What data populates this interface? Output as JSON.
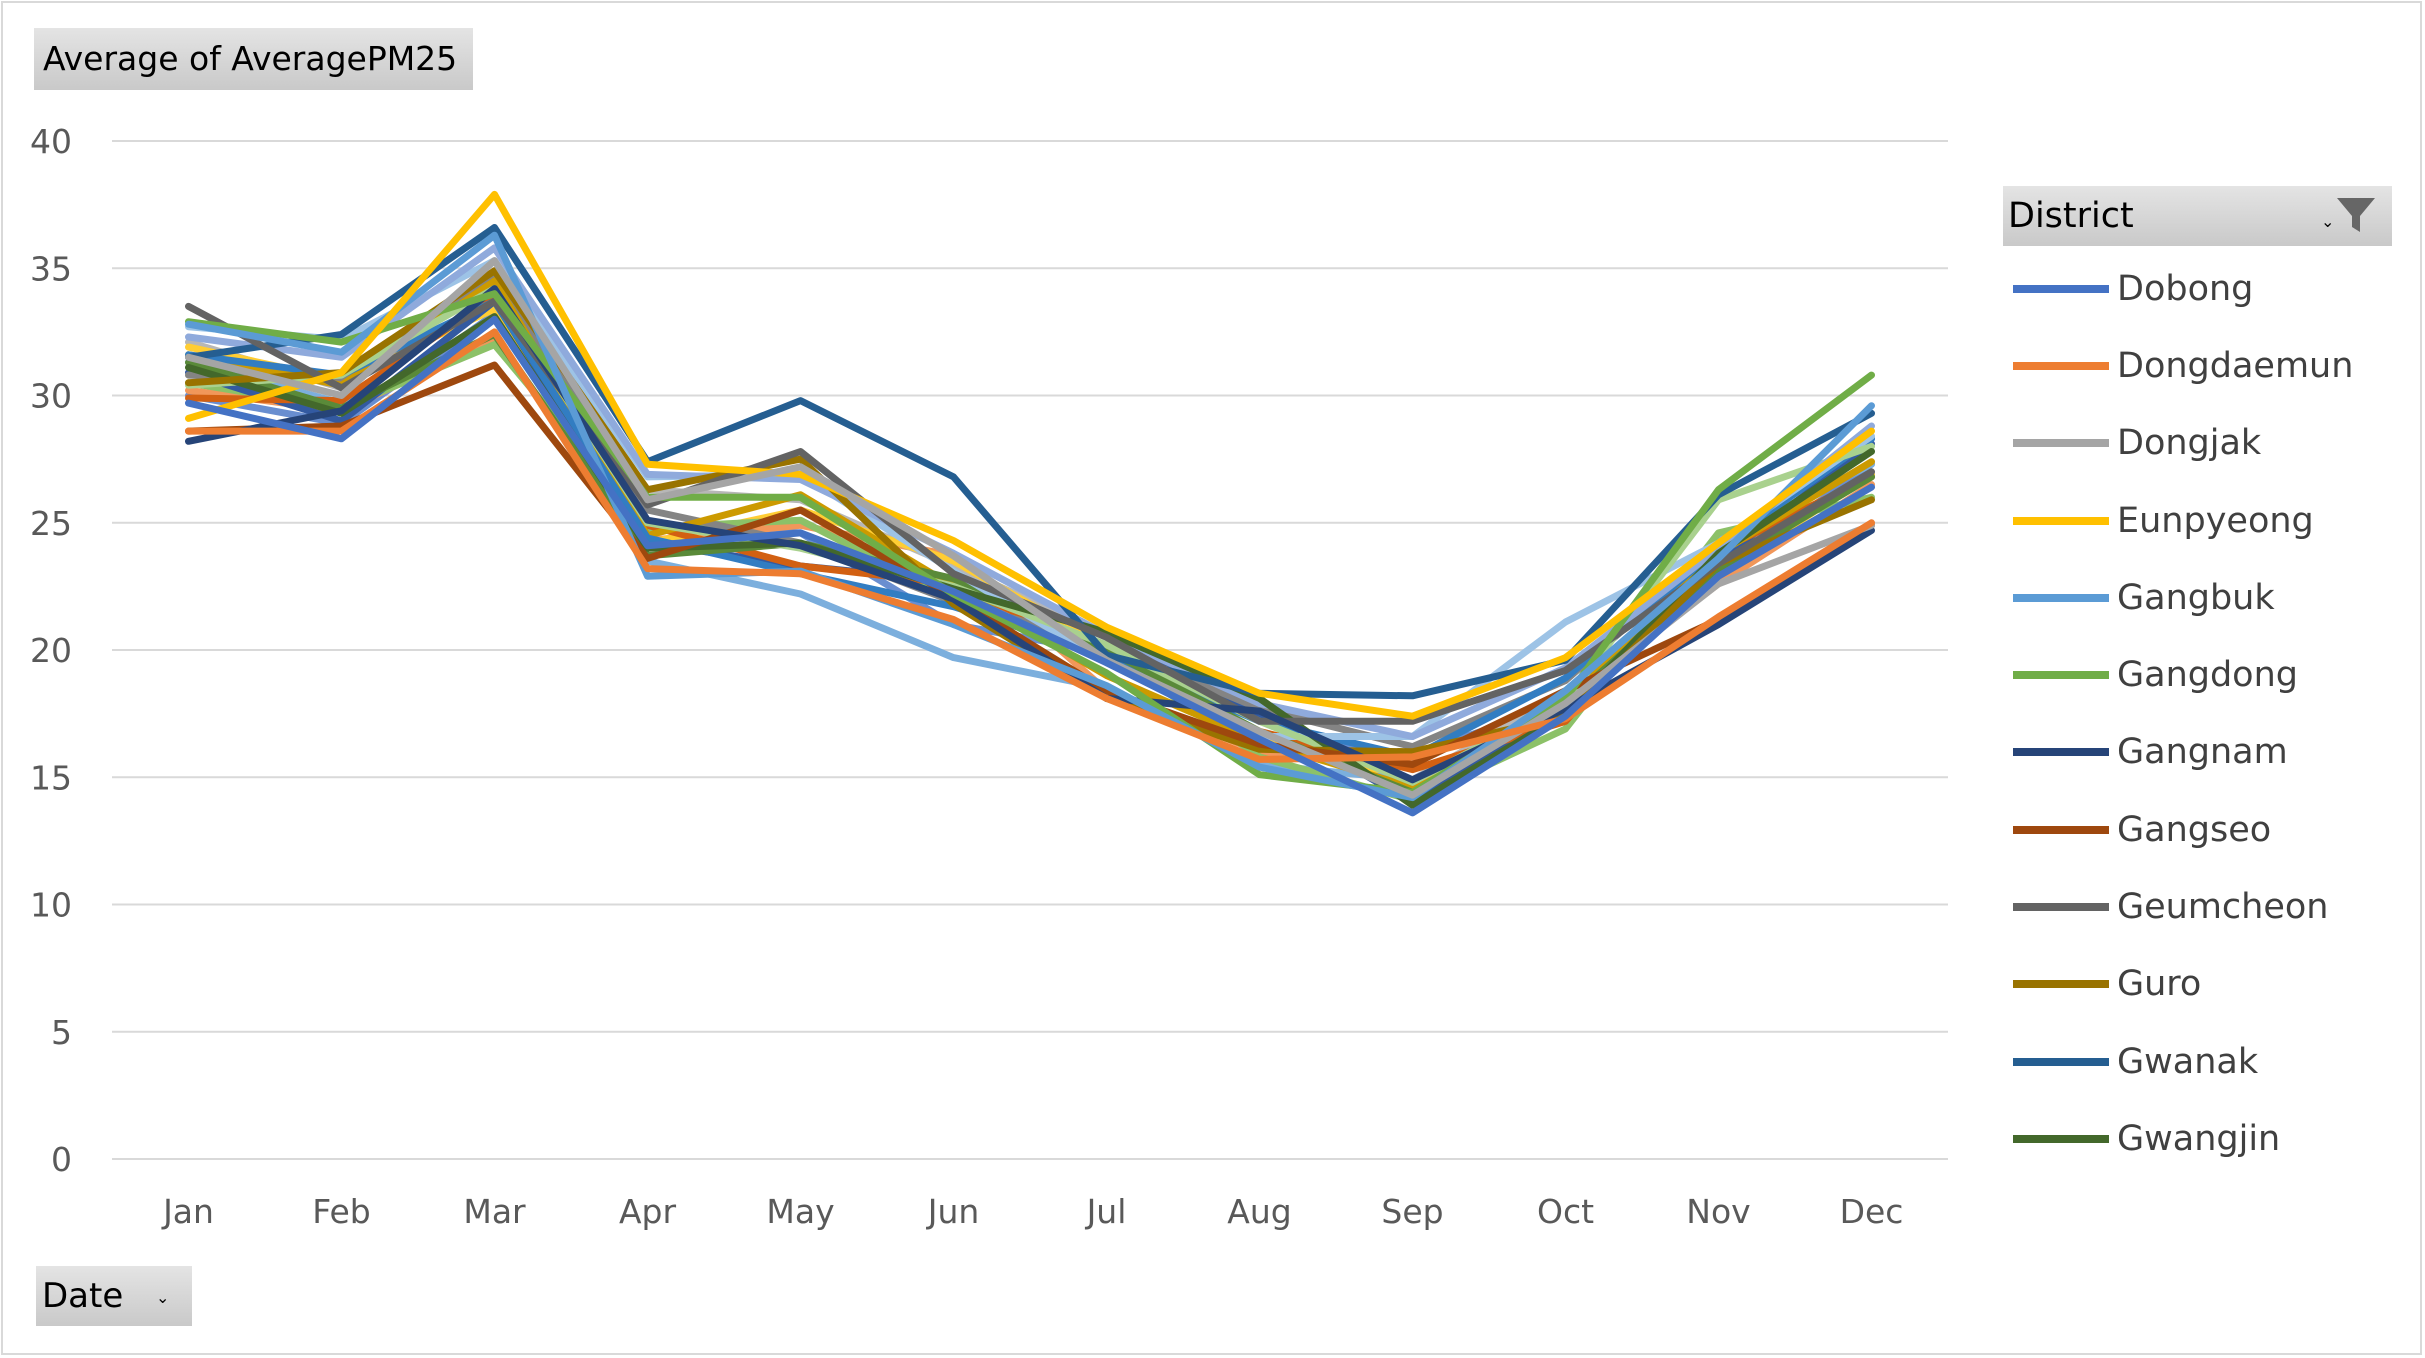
{
  "value_field_button": "Average  of AveragePM25",
  "axis_field_button": "Date",
  "legend": {
    "title": "District"
  },
  "chart_data": {
    "type": "line",
    "title": "",
    "xlabel": "",
    "ylabel": "",
    "ylim": [
      0,
      40
    ],
    "yticks": [
      0,
      5,
      10,
      15,
      20,
      25,
      30,
      35,
      40
    ],
    "grid": "horizontal",
    "legend_position": "right",
    "categories": [
      "Jan",
      "Feb",
      "Mar",
      "Apr",
      "May",
      "Jun",
      "Jul",
      "Aug",
      "Sep",
      "Oct",
      "Nov",
      "Dec"
    ],
    "series": [
      {
        "name": "Dobong",
        "color": "#4472c4",
        "values": [
          29.7,
          28.3,
          33.0,
          24.1,
          24.6,
          22.3,
          19.5,
          16.5,
          13.6,
          17.4,
          22.9,
          26.4
        ]
      },
      {
        "name": "Dongdaemun",
        "color": "#ed7d31",
        "values": [
          28.6,
          28.6,
          32.5,
          23.2,
          23.0,
          21.2,
          18.1,
          15.7,
          15.8,
          17.3,
          21.3,
          25.0
        ]
      },
      {
        "name": "Dongjak",
        "color": "#a5a5a5",
        "values": [
          31.5,
          30.0,
          35.3,
          25.9,
          27.2,
          23.7,
          19.6,
          16.8,
          14.3,
          17.9,
          22.6,
          24.9
        ]
      },
      {
        "name": "Eunpyeong",
        "color": "#ffc000",
        "values": [
          29.1,
          30.9,
          37.9,
          27.3,
          26.9,
          24.3,
          20.9,
          18.3,
          17.4,
          19.7,
          24.2,
          28.6
        ]
      },
      {
        "name": "Gangbuk",
        "color": "#5b9bd5",
        "values": [
          32.8,
          31.7,
          36.3,
          22.9,
          23.1,
          21.0,
          18.6,
          15.4,
          14.2,
          18.4,
          23.6,
          29.6
        ]
      },
      {
        "name": "Gangdong",
        "color": "#70ad47",
        "values": [
          32.9,
          32.1,
          34.0,
          26.0,
          26.0,
          22.2,
          19.1,
          15.1,
          14.4,
          18.1,
          26.3,
          30.8
        ]
      },
      {
        "name": "Gangnam",
        "color": "#264478",
        "values": [
          28.2,
          29.4,
          34.2,
          25.1,
          24.1,
          22.0,
          18.1,
          17.6,
          14.9,
          17.7,
          21.0,
          24.7
        ]
      },
      {
        "name": "Gangseo",
        "color": "#9e480e",
        "values": [
          28.6,
          28.8,
          31.2,
          23.6,
          25.5,
          22.1,
          18.4,
          16.3,
          15.5,
          18.4,
          21.2,
          24.9
        ]
      },
      {
        "name": "Geumcheon",
        "color": "#636363",
        "values": [
          33.5,
          30.3,
          33.7,
          25.7,
          27.8,
          23.0,
          20.5,
          17.2,
          17.2,
          19.2,
          23.4,
          27.0
        ]
      },
      {
        "name": "Guro",
        "color": "#997300",
        "values": [
          30.5,
          30.9,
          34.9,
          26.3,
          27.5,
          21.8,
          18.1,
          16.1,
          16.0,
          17.4,
          23.4,
          25.9
        ]
      },
      {
        "name": "Gwanak",
        "color": "#255e91",
        "values": [
          31.5,
          32.4,
          36.6,
          27.4,
          29.8,
          26.8,
          19.8,
          18.3,
          18.2,
          19.6,
          26.1,
          29.3
        ]
      },
      {
        "name": "Gwangjin",
        "color": "#43682b",
        "values": [
          31.1,
          29.3,
          33.1,
          24.0,
          24.2,
          22.4,
          20.7,
          18.1,
          13.9,
          17.5,
          23.8,
          27.8
        ]
      }
    ],
    "extra_series": [
      {
        "color": "#698ed0",
        "values": [
          30.0,
          28.9,
          33.2,
          24.8,
          24.6,
          21.0,
          19.9,
          16.5,
          15.9,
          17.9,
          23.0,
          27.3
        ]
      },
      {
        "color": "#f1975a",
        "values": [
          30.2,
          29.4,
          32.2,
          24.3,
          24.9,
          23.7,
          18.4,
          16.0,
          15.6,
          18.1,
          22.6,
          26.5
        ]
      },
      {
        "color": "#b7b7b7",
        "values": [
          32.1,
          30.3,
          34.6,
          26.3,
          25.9,
          23.3,
          20.6,
          16.4,
          14.9,
          18.3,
          23.2,
          28.1
        ]
      },
      {
        "color": "#ffcd33",
        "values": [
          31.9,
          30.6,
          33.4,
          24.2,
          25.5,
          23.5,
          20.1,
          16.5,
          14.7,
          17.6,
          23.0,
          26.9
        ]
      },
      {
        "color": "#7cafdd",
        "values": [
          31.3,
          29.7,
          34.0,
          23.5,
          22.2,
          19.7,
          18.5,
          15.5,
          14.9,
          17.3,
          24.3,
          27.3
        ]
      },
      {
        "color": "#8cc168",
        "values": [
          30.5,
          29.5,
          32.0,
          24.8,
          25.1,
          22.0,
          20.0,
          15.8,
          14.1,
          16.9,
          24.6,
          26.0
        ]
      },
      {
        "color": "#335aa1",
        "values": [
          30.9,
          29.0,
          33.7,
          24.2,
          23.3,
          22.7,
          20.6,
          17.5,
          14.0,
          17.8,
          23.5,
          28.1
        ]
      },
      {
        "color": "#d26012",
        "values": [
          29.9,
          29.8,
          33.9,
          24.9,
          23.3,
          22.6,
          19.8,
          16.8,
          15.3,
          17.2,
          23.9,
          26.8
        ]
      },
      {
        "color": "#848484",
        "values": [
          30.8,
          30.6,
          34.7,
          25.5,
          24.2,
          21.9,
          20.2,
          17.7,
          16.2,
          18.8,
          24.1,
          28.3
        ]
      },
      {
        "color": "#cc9a00",
        "values": [
          31.6,
          30.4,
          34.5,
          24.5,
          26.1,
          22.5,
          19.0,
          16.4,
          14.6,
          18.1,
          23.8,
          27.4
        ]
      },
      {
        "color": "#327dc2",
        "values": [
          31.6,
          30.8,
          33.7,
          24.4,
          23.0,
          21.7,
          19.8,
          17.2,
          15.8,
          18.9,
          24.0,
          28.3
        ]
      },
      {
        "color": "#5a8a39",
        "values": [
          31.3,
          29.5,
          32.4,
          23.7,
          24.2,
          22.8,
          20.0,
          16.8,
          14.4,
          17.9,
          23.2,
          26.8
        ]
      },
      {
        "color": "#9dc3e6",
        "values": [
          32.7,
          32.2,
          35.3,
          26.8,
          26.9,
          23.1,
          19.5,
          16.6,
          16.6,
          21.1,
          24.2,
          28.4
        ]
      },
      {
        "color": "#a9d18e",
        "values": [
          30.4,
          30.8,
          34.2,
          25.0,
          24.0,
          22.5,
          20.2,
          17.2,
          14.8,
          18.0,
          25.9,
          28.0
        ]
      },
      {
        "color": "#8faadc",
        "values": [
          32.3,
          31.5,
          35.8,
          26.9,
          26.7,
          23.8,
          20.6,
          17.9,
          16.6,
          19.3,
          24.0,
          28.8
        ]
      }
    ]
  }
}
